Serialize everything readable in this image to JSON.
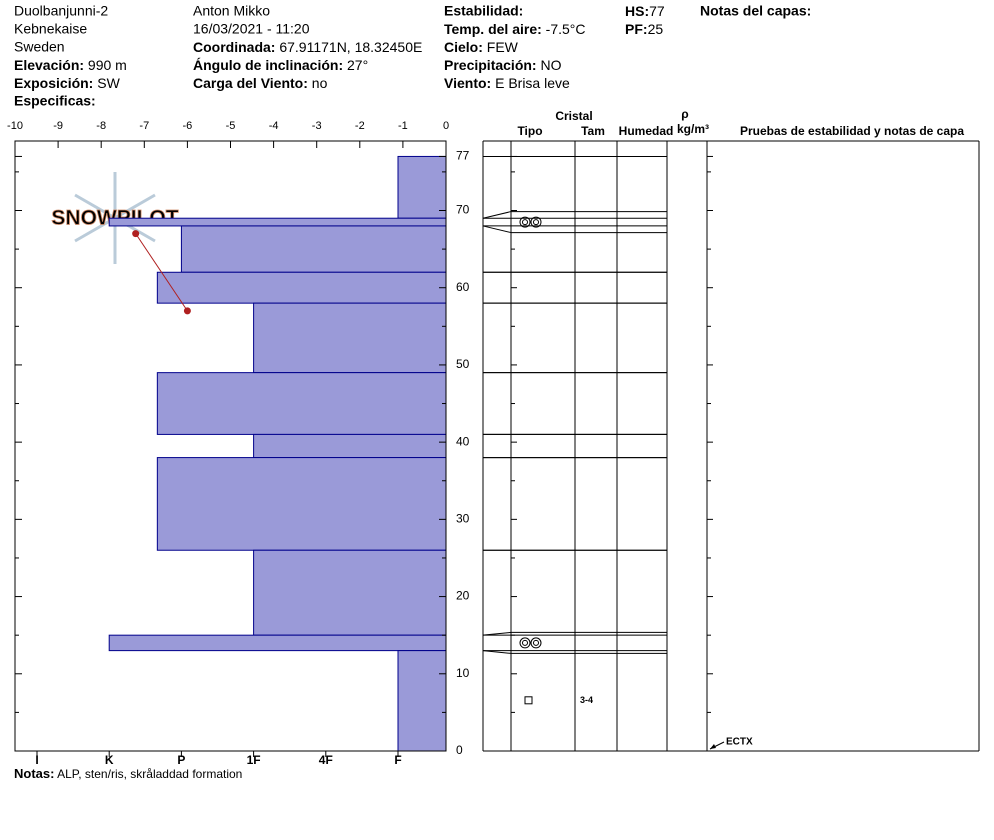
{
  "header": {
    "site": "Duolbanjunni-2",
    "region": "Kebnekaise",
    "country": "Sweden",
    "elevation": {
      "label": "Elevación:",
      "value": "990 m"
    },
    "aspect": {
      "label": "Exposición:",
      "value": "SW"
    },
    "specifics": {
      "label": "Especificas:"
    },
    "observer": "Anton Mikko",
    "datetime": "16/03/2021 - 11:20",
    "coordinates": {
      "label": "Coordinada:",
      "value": "67.91171N, 18.32450E"
    },
    "slope": {
      "label": "Ángulo de inclinación:",
      "value": "27°"
    },
    "wind_loading": {
      "label": "Carga del Viento:",
      "value": "no"
    },
    "stability": {
      "label": "Estabilidad:"
    },
    "air_temp": {
      "label": "Temp. del aire:",
      "value": "-7.5°C"
    },
    "sky": {
      "label": "Cielo:",
      "value": "FEW"
    },
    "precipitation": {
      "label": "Precipitación:",
      "value": "NO"
    },
    "wind": {
      "label": "Viento:",
      "value": "E Brisa leve"
    },
    "hs": {
      "label": "HS:",
      "value": 77
    },
    "pf": {
      "label": "PF:",
      "value": 25
    },
    "layer_notes": {
      "label": "Notas del capas:"
    }
  },
  "profile": {
    "watermark": "SNOWPILOT",
    "xlim": [
      -10,
      0
    ],
    "xticks": [
      -10,
      -9,
      -8,
      -7,
      -6,
      -5,
      -4,
      -3,
      -2,
      -1,
      0
    ],
    "ylim": [
      0,
      79
    ],
    "yticks": [
      0,
      10,
      20,
      30,
      40,
      50,
      60,
      70,
      77
    ],
    "minor_yticks": [
      5,
      15,
      25,
      35,
      45,
      55,
      65,
      75
    ],
    "hardness_axis": [
      "I",
      "K",
      "P",
      "1F",
      "4F",
      "F"
    ],
    "bar_color": "#9a9ad8",
    "layers": [
      {
        "top": 77,
        "bottom": 69,
        "hardness": "F"
      },
      {
        "top": 69,
        "bottom": 68,
        "hardness": "K",
        "form": "MF"
      },
      {
        "top": 68,
        "bottom": 62,
        "hardness": "P"
      },
      {
        "top": 62,
        "bottom": 58,
        "hardness": "P+"
      },
      {
        "top": 58,
        "bottom": 49,
        "hardness": "1F"
      },
      {
        "top": 49,
        "bottom": 41,
        "hardness": "P+"
      },
      {
        "top": 41,
        "bottom": 38,
        "hardness": "1F"
      },
      {
        "top": 38,
        "bottom": 26,
        "hardness": "P+"
      },
      {
        "top": 26,
        "bottom": 15,
        "hardness": "1F"
      },
      {
        "top": 15,
        "bottom": 13,
        "hardness": "K",
        "form": "MF"
      },
      {
        "top": 13,
        "bottom": 0,
        "hardness": "F",
        "form": "FC",
        "size": "3-4"
      }
    ],
    "temperature": {
      "heights": [
        67,
        57
      ],
      "values": [
        -7.2,
        -6.0
      ],
      "color": "#b02020"
    }
  },
  "table": {
    "crystal": "Cristal",
    "type": "Tipo",
    "size": "Tam",
    "moisture": "Humedad",
    "density": "ρ",
    "density_unit": "kg/m³",
    "tests": "Pruebas de estabilidad y notas de capa"
  },
  "tests": [
    {
      "height": 0,
      "label": "ECTX"
    }
  ],
  "notes": {
    "label": "Notas:",
    "value": "ALP, sten/ris, skråladdad formation"
  }
}
